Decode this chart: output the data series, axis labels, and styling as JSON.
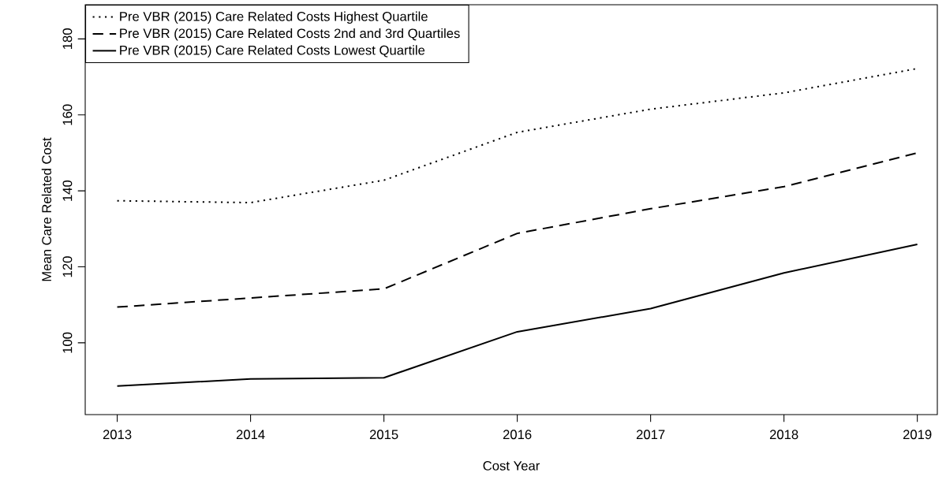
{
  "chart_data": {
    "type": "line",
    "xlabel": "Cost Year",
    "ylabel": "Mean Care Related Cost",
    "x": [
      2013,
      2014,
      2015,
      2016,
      2017,
      2018,
      2019
    ],
    "series": [
      {
        "name": "Pre VBR (2015) Care Related Costs Highest Quartile",
        "color": "#000000",
        "line_style": "dotted",
        "values": [
          137.4,
          136.9,
          142.8,
          155.4,
          161.5,
          165.8,
          172.2
        ]
      },
      {
        "name": "Pre VBR (2015) Care Related Costs 2nd and 3rd Quartiles",
        "color": "#000000",
        "line_style": "dashed",
        "values": [
          109.4,
          111.8,
          114.2,
          128.8,
          135.3,
          141.1,
          150.0
        ]
      },
      {
        "name": "Pre VBR (2015) Care Related Costs Lowest Quartile",
        "color": "#000000",
        "line_style": "solid",
        "values": [
          88.6,
          90.5,
          90.8,
          102.9,
          109.0,
          118.4,
          125.9
        ]
      }
    ],
    "xlim": [
      2012.76,
      2019.15
    ],
    "ylim": [
      81.1,
      189.0
    ],
    "xticks": [
      2013,
      2014,
      2015,
      2016,
      2017,
      2018,
      2019
    ],
    "yticks": [
      100,
      120,
      140,
      160,
      180
    ],
    "grid": false,
    "legend": "top left",
    "marker": "none"
  }
}
